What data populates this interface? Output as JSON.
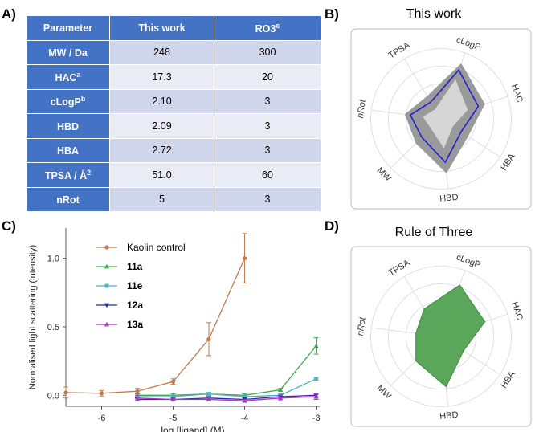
{
  "panels": {
    "a": "A)",
    "b": "B)",
    "c": "C)",
    "d": "D)"
  },
  "table": {
    "headers": [
      "Parameter",
      "This work",
      "RO3"
    ],
    "header_superscript": "c",
    "rows": [
      {
        "param": "MW / Da",
        "sup": "",
        "this_work": "248",
        "ro3": "300"
      },
      {
        "param": "HAC",
        "sup": "a",
        "this_work": "17.3",
        "ro3": "20"
      },
      {
        "param": "cLogP",
        "sup": "b",
        "this_work": "2.10",
        "ro3": "3"
      },
      {
        "param": "HBD",
        "sup": "",
        "this_work": "2.09",
        "ro3": "3"
      },
      {
        "param": "HBA",
        "sup": "",
        "this_work": "2.72",
        "ro3": "3"
      },
      {
        "param": "TPSA / Å",
        "sup": "2",
        "this_work": "51.0",
        "ro3": "60"
      },
      {
        "param": "nRot",
        "sup": "",
        "this_work": "5",
        "ro3": "3"
      }
    ]
  },
  "colors": {
    "header_blue": "#4472c4",
    "kaolin": "#c07a4c",
    "s11a": "#3aaa4a",
    "s11e": "#4ab3c4",
    "s12a": "#2a2a9a",
    "s13a": "#b030d0",
    "radar_grey": "#9a9a9a",
    "radar_light": "#d6d6d6",
    "radar_line": "#2222cc",
    "radar_green": "#5aa65a"
  },
  "chart_data": [
    {
      "type": "line",
      "xlabel": "log [ligand] (M)",
      "ylabel": "Normalised light scattering (intensity)",
      "xlim": [
        -6.5,
        -2.95
      ],
      "ylim": [
        -0.08,
        1.22
      ],
      "xticks": [
        -6,
        -5,
        -4,
        -3
      ],
      "xtick_labels": [
        "-6",
        "-5",
        "-4",
        "-3"
      ],
      "yticks": [
        0.0,
        0.5,
        1.0
      ],
      "ytick_labels": [
        "0.0",
        "0.5",
        "1.0"
      ],
      "series": [
        {
          "name": "Kaolin control",
          "marker": "circle",
          "x": [
            -6.5,
            -6,
            -5.5,
            -5,
            -4.5,
            -4
          ],
          "y": [
            0.02,
            0.015,
            0.03,
            0.1,
            0.41,
            1.0
          ],
          "err": [
            0.04,
            0.02,
            0.02,
            0.02,
            0.12,
            0.18
          ]
        },
        {
          "name": "11a",
          "marker": "triangle",
          "x": [
            -5.5,
            -5,
            -4.5,
            -4,
            -3.5,
            -3
          ],
          "y": [
            0.0,
            0.0,
            0.01,
            0.0,
            0.04,
            0.36
          ],
          "err": [
            0.01,
            0.01,
            0.01,
            0.01,
            0.01,
            0.06
          ]
        },
        {
          "name": "11e",
          "marker": "square",
          "x": [
            -5.5,
            -5,
            -4.5,
            -4,
            -3.5,
            -3
          ],
          "y": [
            -0.01,
            -0.01,
            0.01,
            -0.01,
            0.0,
            0.12
          ],
          "err": [
            0.01,
            0.01,
            0.01,
            0.01,
            0.01,
            0.01
          ]
        },
        {
          "name": "12a",
          "marker": "triangle-down",
          "x": [
            -5.5,
            -5,
            -4.5,
            -4,
            -3.5,
            -3
          ],
          "y": [
            -0.03,
            -0.03,
            -0.02,
            -0.03,
            -0.01,
            0.0
          ],
          "err": [
            0.01,
            0.01,
            0.01,
            0.01,
            0.01,
            0.01
          ]
        },
        {
          "name": "13a",
          "marker": "triangle",
          "x": [
            -5.5,
            -5,
            -4.5,
            -4,
            -3.5,
            -3
          ],
          "y": [
            -0.02,
            -0.03,
            -0.03,
            -0.04,
            -0.02,
            -0.01
          ],
          "err": [
            0.02,
            0.01,
            0.01,
            0.01,
            0.02,
            0.02
          ]
        }
      ]
    },
    {
      "type": "radar",
      "title": "This work",
      "axes": [
        "cLogP",
        "HAC",
        "HBA",
        "HBD",
        "MW",
        "nRot",
        "TPSA"
      ],
      "rmax": 1.0,
      "rings": 4,
      "band_outer": [
        0.84,
        0.66,
        0.46,
        0.78,
        0.5,
        0.52,
        0.38
      ],
      "band_inner": [
        0.6,
        0.4,
        0.2,
        0.42,
        0.2,
        0.26,
        0.16
      ],
      "series": [
        {
          "name": "This work",
          "values": [
            0.74,
            0.56,
            0.34,
            0.62,
            0.38,
            0.44,
            0.28
          ]
        }
      ]
    },
    {
      "type": "radar",
      "title": "Rule of Three",
      "axes": [
        "cLogP",
        "HAC",
        "HBA",
        "HBD",
        "MW",
        "nRot",
        "TPSA"
      ],
      "rmax": 1.0,
      "rings": 4,
      "series": [
        {
          "name": "Rule of Three",
          "values": [
            0.78,
            0.66,
            0.38,
            0.72,
            0.5,
            0.36,
            0.46
          ]
        }
      ]
    }
  ]
}
